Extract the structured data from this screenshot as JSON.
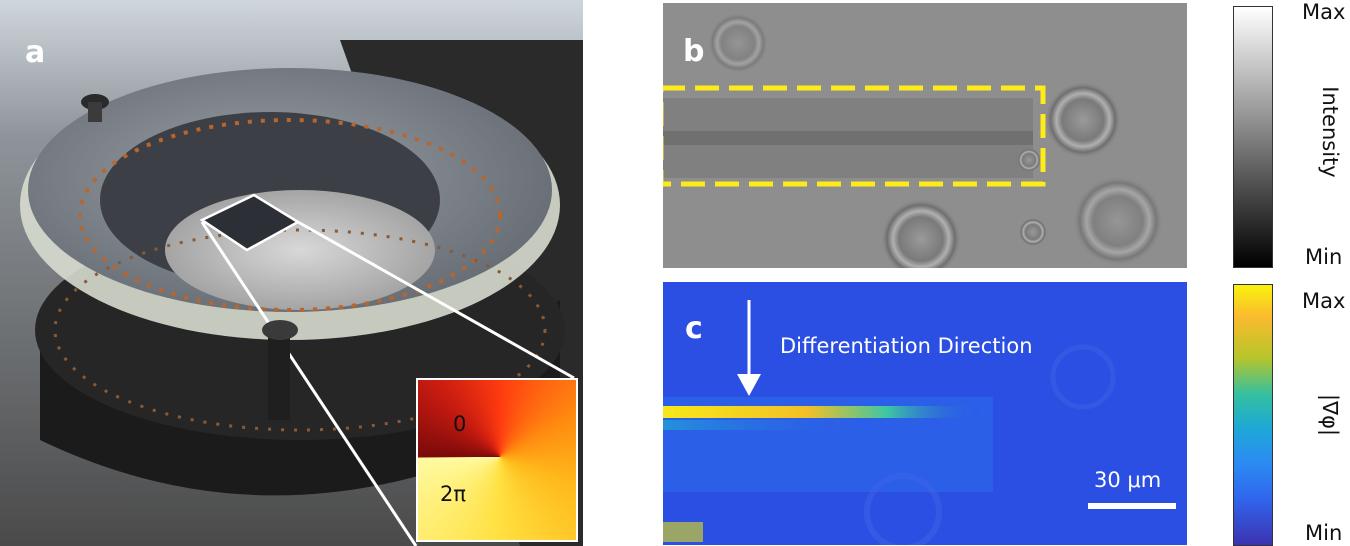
{
  "panel_a": {
    "label": "a",
    "inset": {
      "label_zero": "0",
      "label_two_pi": "2π"
    }
  },
  "panel_b": {
    "label": "b",
    "colorbar": {
      "max": "Max",
      "min": "Min",
      "title": "Intensity"
    }
  },
  "panel_c": {
    "label": "c",
    "annotation": "Differentiation Direction",
    "scale_bar": "30 μm",
    "colorbar": {
      "max": "Max",
      "min": "Min",
      "title": "|∇φ|"
    }
  },
  "colors": {
    "highlight_box": "#ffeb1a",
    "panel_c_background": "#2c4fe3"
  }
}
